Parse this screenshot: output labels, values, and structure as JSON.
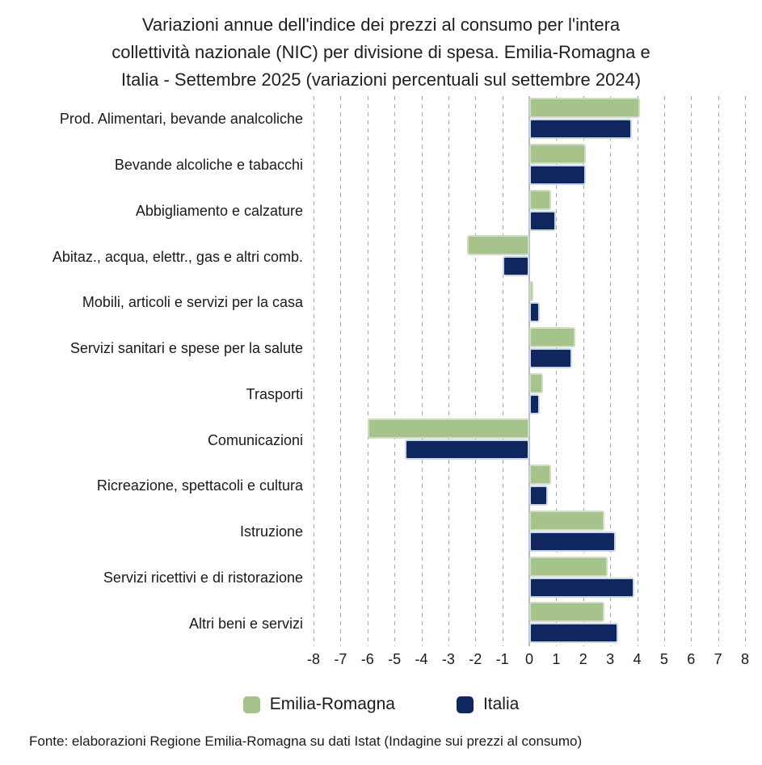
{
  "page": {
    "background": "#ffffff"
  },
  "title_lines": [
    "Variazioni annue dell'indice dei prezzi al consumo per l'intera",
    "collettività nazionale (NIC) per divisione di spesa. Emilia-Romagna e",
    "Italia - Settembre 2025 (variazioni percentuali sul settembre 2024)"
  ],
  "source_note": "Fonte: elaborazioni Regione Emilia-Romagna su dati Istat (Indagine sui prezzi al consumo)",
  "chart_data": {
    "type": "bar",
    "orientation": "horizontal",
    "title": "Variazioni annue dell'indice dei prezzi al consumo per l'intera collettività nazionale (NIC) per divisione di spesa. Emilia-Romagna e Italia - Settembre 2025 (variazioni percentuali sul settembre 2024)",
    "categories": [
      "Prod. Alimentari, bevande analcoliche",
      "Bevande alcoliche e tabacchi",
      "Abbigliamento e calzature",
      "Abitaz., acqua, elettr., gas e altri comb.",
      "Mobili, articoli e servizi per la casa",
      "Servizi sanitari e spese per la salute",
      "Trasporti",
      "Comunicazioni",
      "Ricreazione, spettacoli e cultura",
      "Istruzione",
      "Servizi ricettivi e di ristorazione",
      "Altri beni e servizi"
    ],
    "series": [
      {
        "name": "Emilia-Romagna",
        "color": "#A6C38C",
        "values": [
          4.1,
          2.1,
          0.8,
          -2.3,
          0.1,
          1.7,
          0.5,
          -6.0,
          0.8,
          2.8,
          2.9,
          2.8
        ]
      },
      {
        "name": "Italia",
        "color": "#10265F",
        "values": [
          3.8,
          2.1,
          1.0,
          -1.0,
          0.4,
          1.6,
          0.4,
          -4.6,
          0.7,
          3.2,
          3.9,
          3.3
        ]
      }
    ],
    "xlim": [
      -8,
      8
    ],
    "xticks": [
      -8,
      -7,
      -6,
      -5,
      -4,
      -3,
      -2,
      -1,
      0,
      1,
      2,
      3,
      4,
      5,
      6,
      7,
      8
    ],
    "grid": "vertical-dashed",
    "legend_position": "bottom",
    "value_unit": "percent"
  }
}
